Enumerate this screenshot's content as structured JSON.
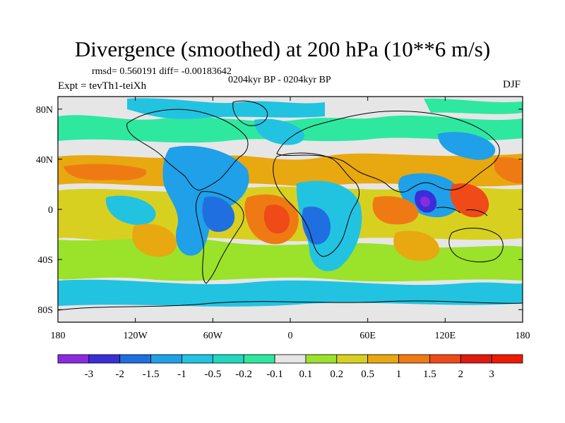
{
  "chart_data": {
    "type": "heatmap",
    "title": "Divergence (smoothed) at 200 hPa (10**6 m/s)",
    "stats_text": "rmsd= 0.560191  diff= -0.00183642",
    "period_text": "0204kyr BP - 0204kyr BP",
    "experiment_text": "Expt = tevTh1-teiXh",
    "season": "DJF",
    "x_ticks": [
      "180",
      "120W",
      "60W",
      "0",
      "60E",
      "120E",
      "180"
    ],
    "y_ticks": [
      "80N",
      "40N",
      "0",
      "40S",
      "80S"
    ],
    "lon_range": [
      -180,
      180
    ],
    "lat_range": [
      -90,
      90
    ],
    "colorbar": {
      "labels": [
        "-3",
        "-2",
        "-1.5",
        "-1",
        "-0.5",
        "-0.2",
        "-0.1",
        "0.1",
        "0.2",
        "0.5",
        "1",
        "1.5",
        "2",
        "3"
      ],
      "colors": [
        "#8a2be2",
        "#3a2fd6",
        "#1f6fe0",
        "#1fa0e8",
        "#22c3e0",
        "#20d8c0",
        "#2ee8a0",
        "#e6e6e6",
        "#9be22a",
        "#d8d020",
        "#e8a810",
        "#ef7a14",
        "#ef4a18",
        "#e01a10",
        "#ee1a00"
      ]
    },
    "field_features": [
      {
        "lon": 105,
        "lat": 2,
        "value": -3
      },
      {
        "lon": 15,
        "lat": -10,
        "value": -2
      },
      {
        "lon": -70,
        "lat": -5,
        "value": -1.5
      },
      {
        "lon": 5,
        "lat": -2,
        "value": 2
      },
      {
        "lon": 130,
        "lat": 5,
        "value": 2
      },
      {
        "lon": -150,
        "lat": 30,
        "value": 1.5
      },
      {
        "lon": 35,
        "lat": 12,
        "value": -1.5
      },
      {
        "lon": -150,
        "lat": 0,
        "value": 1
      },
      {
        "lon": 85,
        "lat": 0,
        "value": 1.5
      }
    ]
  }
}
